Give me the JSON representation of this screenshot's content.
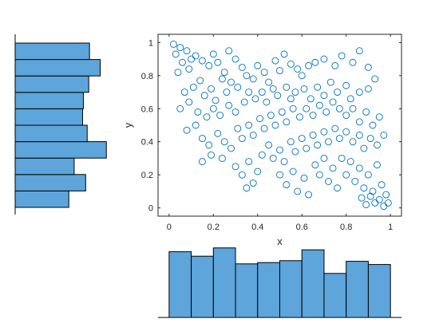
{
  "chart_data": [
    {
      "type": "scatter",
      "title": "",
      "xlabel": "x",
      "ylabel": "y",
      "xlim": [
        -0.05,
        1.05
      ],
      "ylim": [
        -0.05,
        1.05
      ],
      "xticks": [
        0,
        0.2,
        0.4,
        0.6,
        0.8,
        1
      ],
      "yticks": [
        0,
        0.2,
        0.4,
        0.6,
        0.8,
        1
      ],
      "xtick_labels": [
        "0",
        "0.2",
        "0.4",
        "0.6",
        "0.8",
        "1"
      ],
      "ytick_labels": [
        "0",
        "0.2",
        "0.4",
        "0.6",
        "0.8",
        "1"
      ],
      "marker": "open-circle",
      "marker_color": "#0072BD",
      "points": [
        [
          0.02,
          0.99
        ],
        [
          0.05,
          0.97
        ],
        [
          0.08,
          0.95
        ],
        [
          0.03,
          0.93
        ],
        [
          0.1,
          0.9
        ],
        [
          0.06,
          0.88
        ],
        [
          0.12,
          0.92
        ],
        [
          0.15,
          0.89
        ],
        [
          0.09,
          0.84
        ],
        [
          0.04,
          0.82
        ],
        [
          0.18,
          0.86
        ],
        [
          0.2,
          0.93
        ],
        [
          0.22,
          0.88
        ],
        [
          0.25,
          0.82
        ],
        [
          0.27,
          0.95
        ],
        [
          0.3,
          0.9
        ],
        [
          0.24,
          0.78
        ],
        [
          0.28,
          0.76
        ],
        [
          0.33,
          0.85
        ],
        [
          0.35,
          0.8
        ],
        [
          0.14,
          0.77
        ],
        [
          0.11,
          0.73
        ],
        [
          0.07,
          0.7
        ],
        [
          0.16,
          0.68
        ],
        [
          0.19,
          0.72
        ],
        [
          0.21,
          0.65
        ],
        [
          0.26,
          0.7
        ],
        [
          0.31,
          0.73
        ],
        [
          0.38,
          0.78
        ],
        [
          0.4,
          0.86
        ],
        [
          0.43,
          0.82
        ],
        [
          0.45,
          0.76
        ],
        [
          0.48,
          0.89
        ],
        [
          0.5,
          0.83
        ],
        [
          0.52,
          0.93
        ],
        [
          0.55,
          0.87
        ],
        [
          0.58,
          0.84
        ],
        [
          0.6,
          0.8
        ],
        [
          0.63,
          0.86
        ],
        [
          0.66,
          0.88
        ],
        [
          0.7,
          0.9
        ],
        [
          0.75,
          0.86
        ],
        [
          0.78,
          0.92
        ],
        [
          0.83,
          0.88
        ],
        [
          0.86,
          0.95
        ],
        [
          0.9,
          0.85
        ],
        [
          0.05,
          0.6
        ],
        [
          0.09,
          0.64
        ],
        [
          0.13,
          0.58
        ],
        [
          0.17,
          0.55
        ],
        [
          0.12,
          0.5
        ],
        [
          0.08,
          0.47
        ],
        [
          0.2,
          0.6
        ],
        [
          0.23,
          0.56
        ],
        [
          0.27,
          0.62
        ],
        [
          0.3,
          0.58
        ],
        [
          0.34,
          0.64
        ],
        [
          0.36,
          0.7
        ],
        [
          0.39,
          0.66
        ],
        [
          0.42,
          0.7
        ],
        [
          0.44,
          0.64
        ],
        [
          0.47,
          0.72
        ],
        [
          0.49,
          0.68
        ],
        [
          0.53,
          0.73
        ],
        [
          0.55,
          0.66
        ],
        [
          0.57,
          0.7
        ],
        [
          0.61,
          0.72
        ],
        [
          0.64,
          0.66
        ],
        [
          0.67,
          0.73
        ],
        [
          0.7,
          0.68
        ],
        [
          0.73,
          0.76
        ],
        [
          0.76,
          0.7
        ],
        [
          0.8,
          0.74
        ],
        [
          0.82,
          0.66
        ],
        [
          0.86,
          0.7
        ],
        [
          0.9,
          0.72
        ],
        [
          0.93,
          0.78
        ],
        [
          0.15,
          0.42
        ],
        [
          0.18,
          0.38
        ],
        [
          0.22,
          0.45
        ],
        [
          0.25,
          0.4
        ],
        [
          0.19,
          0.32
        ],
        [
          0.15,
          0.28
        ],
        [
          0.24,
          0.3
        ],
        [
          0.28,
          0.36
        ],
        [
          0.31,
          0.48
        ],
        [
          0.33,
          0.42
        ],
        [
          0.36,
          0.5
        ],
        [
          0.38,
          0.44
        ],
        [
          0.41,
          0.54
        ],
        [
          0.43,
          0.48
        ],
        [
          0.46,
          0.56
        ],
        [
          0.48,
          0.5
        ],
        [
          0.51,
          0.58
        ],
        [
          0.53,
          0.52
        ],
        [
          0.56,
          0.6
        ],
        [
          0.59,
          0.55
        ],
        [
          0.62,
          0.6
        ],
        [
          0.65,
          0.56
        ],
        [
          0.68,
          0.62
        ],
        [
          0.71,
          0.58
        ],
        [
          0.74,
          0.64
        ],
        [
          0.77,
          0.6
        ],
        [
          0.8,
          0.56
        ],
        [
          0.83,
          0.6
        ],
        [
          0.86,
          0.52
        ],
        [
          0.89,
          0.58
        ],
        [
          0.92,
          0.5
        ],
        [
          0.95,
          0.55
        ],
        [
          0.3,
          0.25
        ],
        [
          0.33,
          0.2
        ],
        [
          0.36,
          0.28
        ],
        [
          0.4,
          0.22
        ],
        [
          0.38,
          0.15
        ],
        [
          0.35,
          0.12
        ],
        [
          0.42,
          0.32
        ],
        [
          0.45,
          0.38
        ],
        [
          0.47,
          0.3
        ],
        [
          0.5,
          0.35
        ],
        [
          0.52,
          0.28
        ],
        [
          0.55,
          0.4
        ],
        [
          0.57,
          0.34
        ],
        [
          0.6,
          0.42
        ],
        [
          0.62,
          0.36
        ],
        [
          0.65,
          0.44
        ],
        [
          0.67,
          0.38
        ],
        [
          0.7,
          0.46
        ],
        [
          0.72,
          0.4
        ],
        [
          0.75,
          0.48
        ],
        [
          0.77,
          0.42
        ],
        [
          0.8,
          0.46
        ],
        [
          0.83,
          0.4
        ],
        [
          0.86,
          0.44
        ],
        [
          0.88,
          0.36
        ],
        [
          0.91,
          0.42
        ],
        [
          0.94,
          0.38
        ],
        [
          0.97,
          0.44
        ],
        [
          0.5,
          0.2
        ],
        [
          0.53,
          0.14
        ],
        [
          0.56,
          0.22
        ],
        [
          0.58,
          0.1
        ],
        [
          0.61,
          0.18
        ],
        [
          0.63,
          0.08
        ],
        [
          0.66,
          0.26
        ],
        [
          0.68,
          0.2
        ],
        [
          0.7,
          0.3
        ],
        [
          0.72,
          0.16
        ],
        [
          0.74,
          0.24
        ],
        [
          0.76,
          0.12
        ],
        [
          0.78,
          0.3
        ],
        [
          0.8,
          0.2
        ],
        [
          0.82,
          0.28
        ],
        [
          0.84,
          0.16
        ],
        [
          0.86,
          0.24
        ],
        [
          0.88,
          0.12
        ],
        [
          0.9,
          0.2
        ],
        [
          0.92,
          0.1
        ],
        [
          0.94,
          0.26
        ],
        [
          0.96,
          0.14
        ],
        [
          0.98,
          0.08
        ],
        [
          0.99,
          0.03
        ],
        [
          0.97,
          0.01
        ],
        [
          0.95,
          0.05
        ],
        [
          0.93,
          0.03
        ],
        [
          0.91,
          0.07
        ],
        [
          0.89,
          0.02
        ],
        [
          0.87,
          0.06
        ]
      ],
      "position": "main"
    },
    {
      "type": "bar",
      "title": "",
      "xlabel": "",
      "ylabel": "",
      "orientation": "vertical",
      "bin_edges": [
        0,
        0.1,
        0.2,
        0.3,
        0.4,
        0.5,
        0.6,
        0.7,
        0.8,
        0.9,
        1.0
      ],
      "values": [
        103,
        96,
        109,
        84,
        86,
        89,
        106,
        69,
        88,
        83
      ],
      "ylim": [
        0,
        115
      ],
      "bar_color": "#5DA5DA",
      "edge_color": "#000000",
      "position": "bottom"
    },
    {
      "type": "bar",
      "title": "",
      "xlabel": "",
      "ylabel": "",
      "orientation": "horizontal",
      "bin_edges": [
        0,
        0.1,
        0.2,
        0.3,
        0.4,
        0.5,
        0.6,
        0.7,
        0.8,
        0.9,
        1.0
      ],
      "values": [
        70,
        92,
        77,
        119,
        94,
        88,
        89,
        96,
        111,
        97
      ],
      "xlim": [
        0,
        125
      ],
      "bar_color": "#5DA5DA",
      "edge_color": "#000000",
      "position": "left"
    }
  ]
}
